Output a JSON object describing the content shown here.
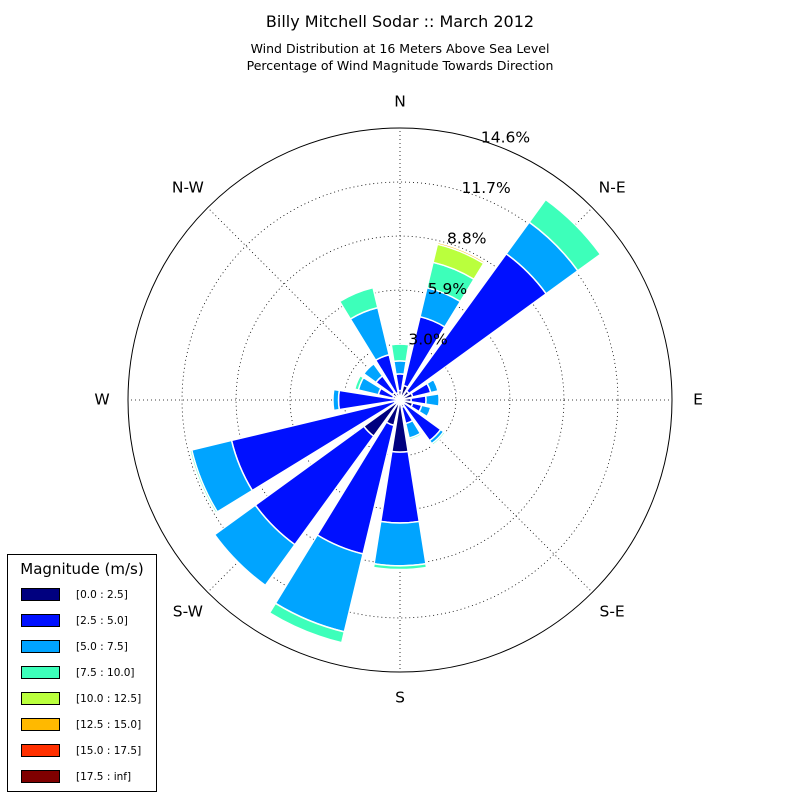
{
  "chart_data": {
    "type": "windrose",
    "title": "Billy Mitchell Sodar :: March 2012",
    "subtitle_lines": [
      "Wind Distribution at 16 Meters Above Sea Level",
      "Percentage of Wind Magnitude Towards Direction"
    ],
    "direction_labels": [
      "N",
      "N-E",
      "E",
      "S-E",
      "S",
      "S-W",
      "W",
      "N-W"
    ],
    "radial_ticks": [
      3.0,
      5.9,
      8.8,
      11.7,
      14.6
    ],
    "radial_tick_labels": [
      "3.0%",
      "5.9%",
      "8.8%",
      "11.7%",
      "14.6%"
    ],
    "rmax": 14.6,
    "legend": {
      "title": "Magnitude (m/s)",
      "placement": "lower-left",
      "bins": [
        {
          "label": "[0.0 : 2.5]",
          "color": "#00007f"
        },
        {
          "label": "[2.5 : 5.0]",
          "color": "#0010ff"
        },
        {
          "label": "[5.0 : 7.5]",
          "color": "#00a4ff"
        },
        {
          "label": "[7.5 : 10.0]",
          "color": "#3dffba"
        },
        {
          "label": "[10.0 : 12.5]",
          "color": "#baff3d"
        },
        {
          "label": "[12.5 : 15.0]",
          "color": "#ffb900"
        },
        {
          "label": "[15.0 : 17.5]",
          "color": "#ff3000"
        },
        {
          "label": "[17.5 : inf]",
          "color": "#7f0000"
        }
      ]
    },
    "sectors": [
      {
        "direction_deg": 0,
        "cumulative_percent": [
          0.5,
          1.4,
          2.1,
          3.0
        ]
      },
      {
        "direction_deg": 22.5,
        "cumulative_percent": [
          0.8,
          4.6,
          6.2,
          7.6,
          8.6,
          8.7
        ]
      },
      {
        "direction_deg": 45,
        "cumulative_percent": [
          0.6,
          9.7,
          11.8,
          13.3
        ]
      },
      {
        "direction_deg": 67.5,
        "cumulative_percent": [
          0.7,
          1.7,
          2.1
        ]
      },
      {
        "direction_deg": 90,
        "cumulative_percent": [
          0.6,
          1.4,
          2.1
        ]
      },
      {
        "direction_deg": 112.5,
        "cumulative_percent": [
          0.7,
          1.2,
          1.7
        ]
      },
      {
        "direction_deg": 135,
        "cumulative_percent": [
          0.3,
          2.7,
          2.9,
          3.0
        ]
      },
      {
        "direction_deg": 157.5,
        "cumulative_percent": [
          0.4,
          1.3,
          2.1,
          2.2
        ]
      },
      {
        "direction_deg": 180,
        "cumulative_percent": [
          2.8,
          6.6,
          8.9,
          9.1
        ]
      },
      {
        "direction_deg": 202.5,
        "cumulative_percent": [
          1.4,
          8.5,
          12.8,
          13.4
        ]
      },
      {
        "direction_deg": 225,
        "cumulative_percent": [
          2.4,
          9.6,
          12.3
        ]
      },
      {
        "direction_deg": 247.5,
        "cumulative_percent": [
          0.3,
          9.3,
          11.5,
          11.6
        ]
      },
      {
        "direction_deg": 270,
        "cumulative_percent": [
          0.2,
          3.3,
          3.6
        ]
      },
      {
        "direction_deg": 292.5,
        "cumulative_percent": [
          0.4,
          1.2,
          2.3,
          2.5
        ]
      },
      {
        "direction_deg": 315,
        "cumulative_percent": [
          0.5,
          1.6,
          2.4
        ]
      },
      {
        "direction_deg": 337.5,
        "cumulative_percent": [
          0.4,
          2.5,
          5.1,
          6.2
        ]
      }
    ]
  }
}
